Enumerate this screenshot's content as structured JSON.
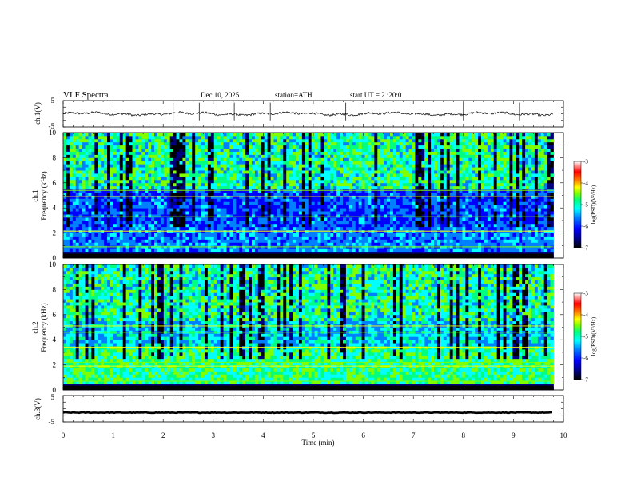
{
  "header": {
    "title": "VLF  Spectra",
    "date": "Dec.10, 2025",
    "station": "station=ATH",
    "start": "start  UT  =    2  :20:0"
  },
  "chart_data": [
    {
      "type": "line",
      "panel": "ch1-waveform",
      "ylabel": "ch.1(V)",
      "ylim": [
        -5,
        5
      ],
      "yticks": [
        "5",
        "-5"
      ],
      "series_baseline": 0,
      "spike_x_min": [
        2.2,
        2.72,
        3.42,
        4.14,
        5.65,
        8.0,
        9.12
      ]
    },
    {
      "type": "heatmap",
      "panel": "ch1-spectrogram",
      "ylabel": "ch.1\nFrequency (kHz)",
      "ylim": [
        0,
        10
      ],
      "yticks": [
        "0",
        "2",
        "4",
        "6",
        "8",
        "10"
      ],
      "colorbar": {
        "label": "log(PSD)(V²/Hz)",
        "range": [
          -7,
          -3
        ],
        "ticks": [
          "-3",
          "-4",
          "-5",
          "-6",
          "-7"
        ]
      },
      "tone_lines_khz": [
        0.9,
        2.15,
        3.3,
        4.9,
        5.4
      ]
    },
    {
      "type": "heatmap",
      "panel": "ch2-spectrogram",
      "ylabel": "ch.2\nFrequency (kHz)",
      "ylim": [
        0,
        10
      ],
      "yticks": [
        "0",
        "2",
        "4",
        "6",
        "8",
        "10"
      ],
      "colorbar": {
        "label": "log(PSD)(V²/Hz)",
        "range": [
          -7,
          -3
        ],
        "ticks": [
          "-3",
          "-4",
          "-5",
          "-6",
          "-7"
        ]
      },
      "tone_lines_khz": [
        0.7,
        1.9,
        2.2,
        3.4,
        4.6,
        5.1
      ]
    },
    {
      "type": "line",
      "panel": "ch3-waveform",
      "ylabel": "ch.3(V)",
      "ylim": [
        -5,
        5
      ],
      "yticks": [
        "5",
        "-5"
      ],
      "series_baseline": -1.5
    }
  ],
  "xaxis": {
    "label": "Time  (min)",
    "range": [
      0,
      10
    ],
    "ticks": [
      "0",
      "1",
      "2",
      "3",
      "4",
      "5",
      "6",
      "7",
      "8",
      "9",
      "10"
    ],
    "data_end_min": 9.8
  },
  "colors": {
    "scale": [
      "#000000",
      "#00007f",
      "#0000ff",
      "#0080ff",
      "#00ffff",
      "#00ff80",
      "#80ff00",
      "#ffff00",
      "#ff8000",
      "#ff0000",
      "#ffffff"
    ]
  }
}
